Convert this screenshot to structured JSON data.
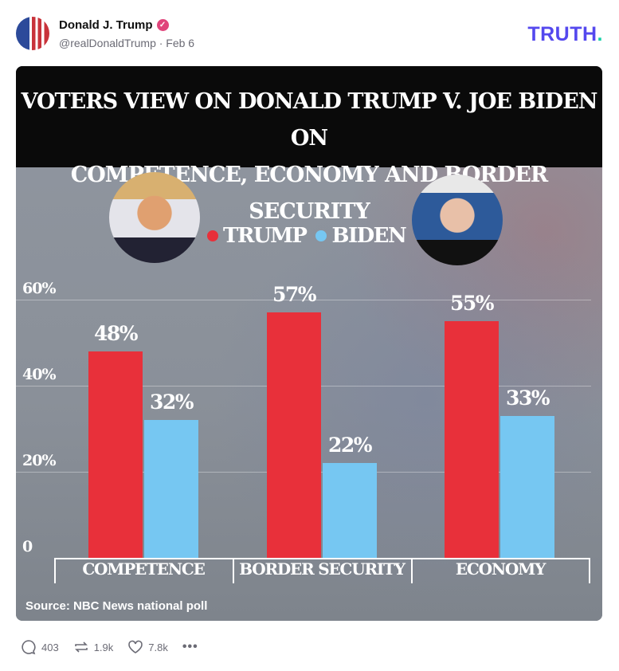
{
  "post": {
    "author_name": "Donald J. Trump",
    "handle_date": "@realDonaldTrump · Feb 6",
    "verified_icon": "check-badge-icon",
    "logo": "TRUTH",
    "logo_dot": ".",
    "colors": {
      "logo": "#5448ee",
      "logo_dot": "#17d1a8",
      "badge": "#e0457b"
    }
  },
  "image": {
    "title_line1": "VOTERS VIEW ON DONALD TRUMP V. JOE BIDEN ON",
    "title_line2": "COMPETENCE, ECONOMY AND BORDER SECURITY",
    "source": "Source: NBC News national poll"
  },
  "chart_data": {
    "type": "bar",
    "title": "VOTERS VIEW ON DONALD TRUMP V. JOE BIDEN ON COMPETENCE, ECONOMY AND BORDER SECURITY",
    "categories": [
      "COMPETENCE",
      "BORDER SECURITY",
      "ECONOMY"
    ],
    "series": [
      {
        "name": "TRUMP",
        "color": "#e8303a",
        "values": [
          48,
          57,
          55
        ],
        "labels": [
          "48%",
          "57%",
          "55%"
        ]
      },
      {
        "name": "BIDEN",
        "color": "#76c7f2",
        "values": [
          32,
          22,
          33
        ],
        "labels": [
          "32%",
          "22%",
          "33%"
        ]
      }
    ],
    "yticks": [
      "0",
      "20%",
      "40%",
      "60%"
    ],
    "ylim": [
      0,
      60
    ],
    "grid": true,
    "legend": "top-center"
  },
  "actions": {
    "replies": "403",
    "reposts": "1.9k",
    "likes": "7.8k"
  }
}
